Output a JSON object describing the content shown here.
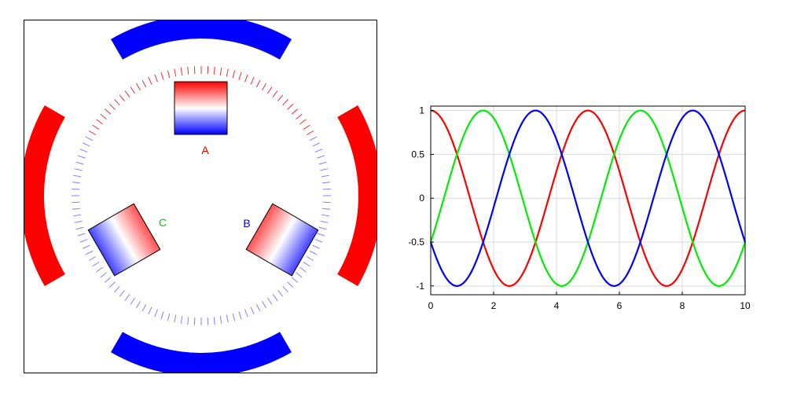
{
  "diagram": {
    "coils": [
      {
        "label": "A",
        "label_color": "#e00000"
      },
      {
        "label": "B",
        "label_color": "#0000e0"
      },
      {
        "label": "C",
        "label_color": "#00cc00"
      }
    ],
    "colors": {
      "red": "#ff0000",
      "blue": "#0000ff",
      "green": "#00ee00",
      "white": "#ffffff"
    }
  },
  "chart_data": {
    "type": "line",
    "xlim": [
      0,
      10
    ],
    "ylim": [
      -1.1,
      1.05
    ],
    "x_ticks": [
      0,
      2,
      4,
      6,
      8,
      10
    ],
    "y_ticks": [
      -1,
      -0.5,
      0,
      0.5,
      1
    ],
    "grid": true,
    "series": [
      {
        "color": "#ff0000",
        "formula": "cos(pi*x/2.5)",
        "x": [
          0,
          0.5,
          1,
          1.5,
          2,
          2.5,
          3,
          3.5,
          4,
          4.5,
          5,
          5.5,
          6,
          6.5,
          7,
          7.5,
          8,
          8.5,
          9,
          9.5,
          10
        ],
        "y": [
          1,
          0.81,
          0.31,
          -0.31,
          -0.81,
          -1,
          -0.81,
          -0.31,
          0.31,
          0.81,
          1,
          0.81,
          0.31,
          -0.31,
          -0.81,
          -1,
          -0.81,
          -0.31,
          0.31,
          0.81,
          1
        ]
      },
      {
        "color": "#00ee00",
        "formula": "cos(pi*x/2.5 - 2.094)",
        "x": [
          0,
          0.5,
          1,
          1.5,
          2,
          2.5,
          3,
          3.5,
          4,
          4.5,
          5,
          5.5,
          6,
          6.5,
          7,
          7.5,
          8,
          8.5,
          9,
          9.5,
          10
        ],
        "y": [
          -0.5,
          0.11,
          0.67,
          0.98,
          0.91,
          0.5,
          -0.11,
          -0.67,
          -0.98,
          -0.91,
          -0.5,
          0.11,
          0.67,
          0.98,
          0.91,
          0.5,
          -0.11,
          -0.67,
          -0.98,
          -0.91,
          -0.5
        ]
      },
      {
        "color": "#0000ff",
        "formula": "cos(pi*x/2.5 + 2.094)",
        "x": [
          0,
          0.5,
          1,
          1.5,
          2,
          2.5,
          3,
          3.5,
          4,
          4.5,
          5,
          5.5,
          6,
          6.5,
          7,
          7.5,
          8,
          8.5,
          9,
          9.5,
          10
        ],
        "y": [
          -0.5,
          -0.91,
          -0.98,
          -0.67,
          -0.11,
          0.5,
          0.91,
          0.98,
          0.67,
          0.11,
          -0.5,
          -0.91,
          -0.98,
          -0.67,
          -0.11,
          0.5,
          0.91,
          0.98,
          0.67,
          0.11,
          -0.5
        ]
      }
    ]
  }
}
